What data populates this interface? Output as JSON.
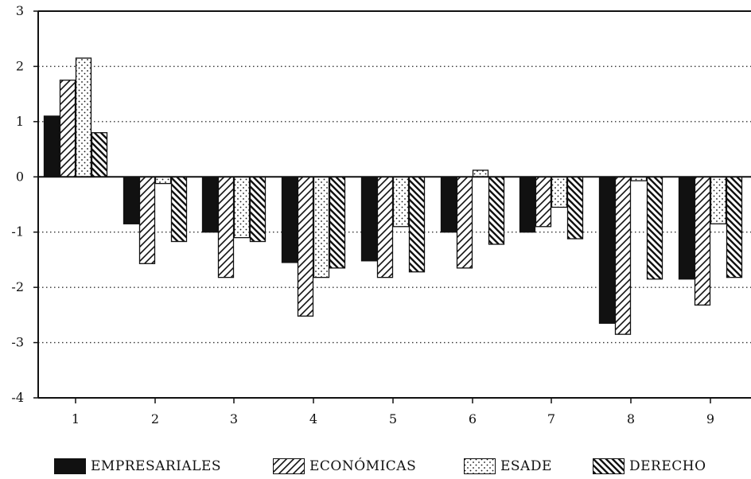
{
  "chart_data": {
    "type": "bar",
    "categories": [
      "1",
      "2",
      "3",
      "4",
      "5",
      "6",
      "7",
      "8",
      "9"
    ],
    "series": [
      {
        "name": "EMPRESARIALES",
        "pattern": "solid",
        "values": [
          1.1,
          -0.85,
          -1.0,
          -1.55,
          -1.52,
          -1.0,
          -1.0,
          -2.65,
          -1.85
        ]
      },
      {
        "name": "ECONÓMICAS",
        "pattern": "diagonal-forward",
        "values": [
          1.75,
          -1.57,
          -1.82,
          -2.52,
          -1.82,
          -1.65,
          -0.9,
          -2.85,
          -2.32
        ]
      },
      {
        "name": "ESADE",
        "pattern": "dots",
        "values": [
          2.15,
          -0.12,
          -1.1,
          -1.82,
          -0.9,
          0.12,
          -0.55,
          -0.07,
          -0.85
        ]
      },
      {
        "name": "DERECHO",
        "pattern": "diagonal-back",
        "values": [
          0.8,
          -1.17,
          -1.17,
          -1.65,
          -1.72,
          -1.22,
          -1.12,
          -1.85,
          -1.82
        ]
      }
    ],
    "y_ticks": [
      "3",
      "2",
      "1",
      "0",
      "-1",
      "-2",
      "-3",
      "-4"
    ],
    "ylim": [
      -4,
      3
    ],
    "grid": "dotted horizontal",
    "legend": "bottom",
    "title": "",
    "xlabel": "",
    "ylabel": ""
  },
  "colors": {
    "ink": "#111111",
    "background": "#ffffff"
  }
}
